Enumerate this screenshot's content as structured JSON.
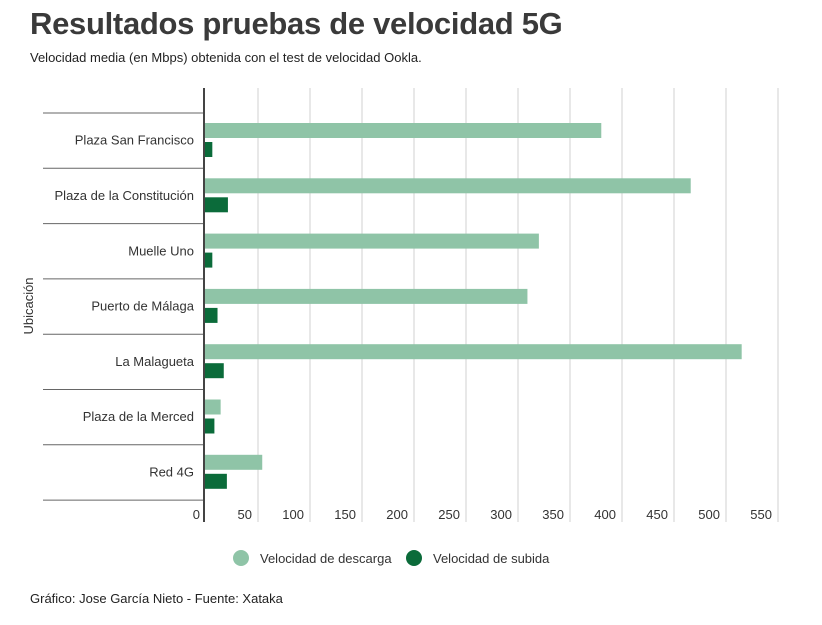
{
  "title": "Resultados pruebas de velocidad 5G",
  "subtitle": "Velocidad media (en Mbps) obtenida con el test de velocidad Ookla.",
  "footer": "Gráfico: Jose García Nieto - Fuente: Xataka",
  "chart_data": {
    "type": "bar",
    "orientation": "horizontal",
    "ylabel": "Ubicación",
    "categories": [
      "Plaza San Francisco",
      "Plaza de la Constitución",
      "Muelle Uno",
      "Puerto de Málaga",
      "La Malagueta",
      "Plaza de la Merced",
      "Red 4G"
    ],
    "series": [
      {
        "name": "Velocidad de descarga",
        "color": "#8fc4a7",
        "values": [
          382,
          468,
          322,
          311,
          517,
          16,
          56
        ]
      },
      {
        "name": "Velocidad de subida",
        "color": "#0b6b3a",
        "values": [
          8,
          23,
          8,
          13,
          19,
          10,
          22
        ]
      }
    ],
    "xlim": [
      0,
      550
    ],
    "xticks": [
      0,
      50,
      100,
      150,
      200,
      250,
      300,
      350,
      400,
      450,
      500,
      550
    ],
    "grid": true,
    "legend": "bottom"
  }
}
